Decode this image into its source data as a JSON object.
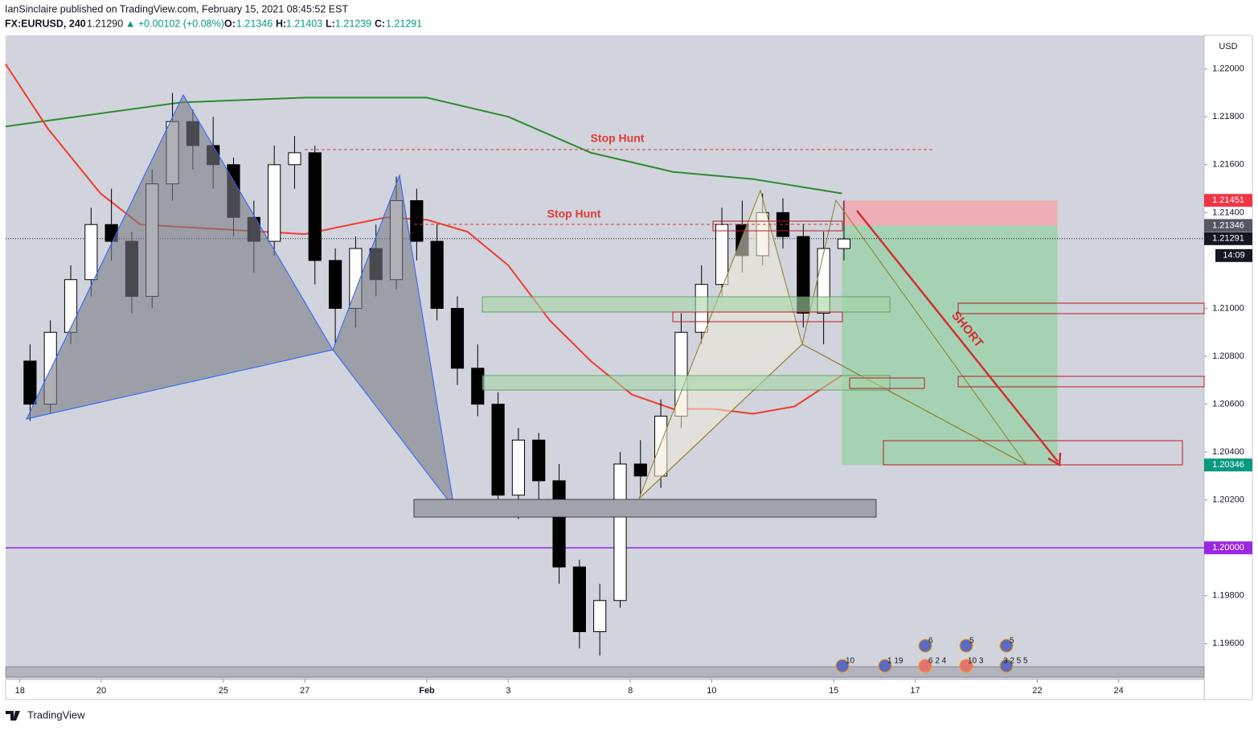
{
  "header": {
    "line1": "IanSinclaire published on TradingView.com, February 15, 2021 08:45:52 EST",
    "symbol": "FX:EURUSD, 240",
    "last": "1.21290",
    "change": "▲ +0.00102 (+0.08%)",
    "ohlc": [
      "O:",
      "1.21346",
      "H:",
      "1.21403",
      "L:",
      "1.21239",
      "C:",
      "1.21291"
    ]
  },
  "footer": {
    "logo": "TradingView"
  },
  "chart_data": {
    "type": "candlestick",
    "currency": "USD",
    "xlim": [
      -0.35,
      29.1
    ],
    "ylim": [
      1.1945,
      1.2214
    ],
    "xticks": [
      {
        "value": 0,
        "label": "18"
      },
      {
        "value": 2,
        "label": "20"
      },
      {
        "value": 5,
        "label": "25"
      },
      {
        "value": 7,
        "label": "27"
      },
      {
        "value": 10,
        "label": "Feb"
      },
      {
        "value": 12,
        "label": "3"
      },
      {
        "value": 15,
        "label": "8"
      },
      {
        "value": 17,
        "label": "10"
      },
      {
        "value": 20,
        "label": "15"
      },
      {
        "value": 22,
        "label": "17"
      },
      {
        "value": 25,
        "label": "22"
      },
      {
        "value": 27,
        "label": "24"
      }
    ],
    "yticks": [
      {
        "value": 1.22,
        "label": "1.22000"
      },
      {
        "value": 1.218,
        "label": "1.21800"
      },
      {
        "value": 1.216,
        "label": "1.21600"
      },
      {
        "value": 1.214,
        "label": "1.21400"
      },
      {
        "value": 1.21,
        "label": "1.21000"
      },
      {
        "value": 1.208,
        "label": "1.20800"
      },
      {
        "value": 1.206,
        "label": "1.20600"
      },
      {
        "value": 1.204,
        "label": "1.20400"
      },
      {
        "value": 1.202,
        "label": "1.20200"
      },
      {
        "value": 1.198,
        "label": "1.19800"
      },
      {
        "value": 1.196,
        "label": "1.19600"
      }
    ],
    "up_color": "#ffffff",
    "down_color": "#000000",
    "candles": [
      {
        "x": 0.25,
        "o": 1.2078,
        "h": 1.2085,
        "l": 1.2053,
        "c": 1.206
      },
      {
        "x": 0.75,
        "o": 1.206,
        "h": 1.2095,
        "l": 1.2056,
        "c": 1.209
      },
      {
        "x": 1.25,
        "o": 1.209,
        "h": 1.2118,
        "l": 1.2085,
        "c": 1.2112
      },
      {
        "x": 1.75,
        "o": 1.2112,
        "h": 1.2142,
        "l": 1.2105,
        "c": 1.2135
      },
      {
        "x": 2.25,
        "o": 1.2135,
        "h": 1.215,
        "l": 1.212,
        "c": 1.2128
      },
      {
        "x": 2.75,
        "o": 1.2128,
        "h": 1.2132,
        "l": 1.2098,
        "c": 1.2105
      },
      {
        "x": 3.25,
        "o": 1.2105,
        "h": 1.2158,
        "l": 1.21,
        "c": 1.2152
      },
      {
        "x": 3.75,
        "o": 1.2152,
        "h": 1.219,
        "l": 1.2145,
        "c": 1.2178
      },
      {
        "x": 4.25,
        "o": 1.2178,
        "h": 1.2183,
        "l": 1.2158,
        "c": 1.2168
      },
      {
        "x": 4.75,
        "o": 1.2168,
        "h": 1.218,
        "l": 1.215,
        "c": 1.216
      },
      {
        "x": 5.25,
        "o": 1.216,
        "h": 1.2163,
        "l": 1.213,
        "c": 1.2138
      },
      {
        "x": 5.75,
        "o": 1.2138,
        "h": 1.2145,
        "l": 1.2115,
        "c": 1.2128
      },
      {
        "x": 6.25,
        "o": 1.2128,
        "h": 1.2168,
        "l": 1.2122,
        "c": 1.216
      },
      {
        "x": 6.75,
        "o": 1.216,
        "h": 1.2172,
        "l": 1.215,
        "c": 1.2165
      },
      {
        "x": 7.25,
        "o": 1.2165,
        "h": 1.2168,
        "l": 1.211,
        "c": 1.212
      },
      {
        "x": 7.75,
        "o": 1.212,
        "h": 1.2125,
        "l": 1.2085,
        "c": 1.21
      },
      {
        "x": 8.25,
        "o": 1.21,
        "h": 1.213,
        "l": 1.2092,
        "c": 1.2125
      },
      {
        "x": 8.75,
        "o": 1.2125,
        "h": 1.2135,
        "l": 1.2105,
        "c": 1.2112
      },
      {
        "x": 9.25,
        "o": 1.2112,
        "h": 1.2155,
        "l": 1.2108,
        "c": 1.2145
      },
      {
        "x": 9.75,
        "o": 1.2145,
        "h": 1.215,
        "l": 1.212,
        "c": 1.2128
      },
      {
        "x": 10.25,
        "o": 1.2128,
        "h": 1.2135,
        "l": 1.2095,
        "c": 1.21
      },
      {
        "x": 10.75,
        "o": 1.21,
        "h": 1.2105,
        "l": 1.2068,
        "c": 1.2075
      },
      {
        "x": 11.25,
        "o": 1.2075,
        "h": 1.2085,
        "l": 1.2055,
        "c": 1.206
      },
      {
        "x": 11.75,
        "o": 1.206,
        "h": 1.2065,
        "l": 1.2015,
        "c": 1.2022
      },
      {
        "x": 12.25,
        "o": 1.2022,
        "h": 1.205,
        "l": 1.2012,
        "c": 1.2045
      },
      {
        "x": 12.75,
        "o": 1.2045,
        "h": 1.2048,
        "l": 1.202,
        "c": 1.2028
      },
      {
        "x": 13.25,
        "o": 1.2028,
        "h": 1.2035,
        "l": 1.1985,
        "c": 1.1992
      },
      {
        "x": 13.75,
        "o": 1.1992,
        "h": 1.1995,
        "l": 1.1958,
        "c": 1.1965
      },
      {
        "x": 14.25,
        "o": 1.1965,
        "h": 1.1985,
        "l": 1.1955,
        "c": 1.1978
      },
      {
        "x": 14.75,
        "o": 1.1978,
        "h": 1.204,
        "l": 1.1975,
        "c": 1.2035
      },
      {
        "x": 15.25,
        "o": 1.2035,
        "h": 1.2045,
        "l": 1.2022,
        "c": 1.203
      },
      {
        "x": 15.75,
        "o": 1.203,
        "h": 1.2062,
        "l": 1.2025,
        "c": 1.2055
      },
      {
        "x": 16.25,
        "o": 1.2055,
        "h": 1.2098,
        "l": 1.205,
        "c": 1.209
      },
      {
        "x": 16.75,
        "o": 1.209,
        "h": 1.2118,
        "l": 1.2085,
        "c": 1.211
      },
      {
        "x": 17.25,
        "o": 1.211,
        "h": 1.2142,
        "l": 1.2105,
        "c": 1.2135
      },
      {
        "x": 17.75,
        "o": 1.2135,
        "h": 1.2145,
        "l": 1.2115,
        "c": 1.2122
      },
      {
        "x": 18.25,
        "o": 1.2122,
        "h": 1.2148,
        "l": 1.2118,
        "c": 1.214
      },
      {
        "x": 18.75,
        "o": 1.214,
        "h": 1.2146,
        "l": 1.2125,
        "c": 1.213
      },
      {
        "x": 19.25,
        "o": 1.213,
        "h": 1.2135,
        "l": 1.2092,
        "c": 1.2098
      },
      {
        "x": 19.75,
        "o": 1.2098,
        "h": 1.2132,
        "l": 1.2085,
        "c": 1.2125
      },
      {
        "x": 20.25,
        "o": 1.2125,
        "h": 1.2145,
        "l": 1.212,
        "c": 1.2129
      }
    ],
    "moving_averages": [
      {
        "color": "#2e8b2e",
        "x": [
          -0.35,
          3.95,
          7,
          10,
          12,
          14.03,
          16.05,
          18.02,
          20.2
        ],
        "values": [
          1.2176,
          1.2186,
          1.2188,
          1.2188,
          1.218,
          1.2165,
          1.2157,
          1.2154,
          1.2148
        ]
      },
      {
        "color": "#f23c2e",
        "x": [
          -0.35,
          0.69,
          1.98,
          2.96,
          5,
          7,
          9,
          10,
          11,
          12,
          13.02,
          14.03,
          15.04,
          16.05,
          17.04,
          18.02,
          19.03,
          20.2
        ],
        "values": [
          1.2202,
          1.2175,
          1.2148,
          1.2135,
          1.2133,
          1.2131,
          1.2138,
          1.2137,
          1.2132,
          1.2118,
          1.2095,
          1.2078,
          1.2064,
          1.2058,
          1.2058,
          1.2056,
          1.2059,
          1.2072
        ]
      }
    ],
    "hlines": [
      {
        "value": 1.2,
        "color": "#9c27e0"
      }
    ],
    "current_price": 1.21291,
    "position": {
      "x": [
        20.2,
        25.5
      ],
      "entry": 1.21346,
      "stop": 1.21451,
      "target": 1.20346
    },
    "price_labels": [
      {
        "value": 1.21451,
        "label": "1.21451",
        "color": "#f23645"
      },
      {
        "value": 1.21346,
        "label": "1.21346",
        "color": "#555862"
      },
      {
        "value": 1.21291,
        "label": "1.21291",
        "color": "#131722"
      },
      {
        "value": 1.20346,
        "label": "1.20346",
        "color": "#089981"
      },
      {
        "value": 1.2,
        "label": "1.20000",
        "color": "#9c27e0"
      }
    ],
    "countdown": "14:09",
    "annotations": [
      "Stop Hunt",
      "Stop Hunt",
      "SHORT"
    ],
    "events": [
      "10",
      "1 19",
      "6",
      "6 2 4",
      "5",
      "10 3",
      "5",
      "3 2 5 5"
    ]
  }
}
